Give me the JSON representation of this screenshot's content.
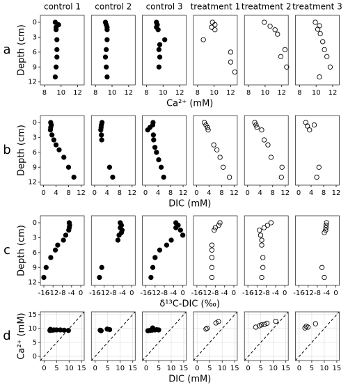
{
  "chart_data": [
    {
      "type": "scatter",
      "title": "control 1",
      "panel_label": "a",
      "ylabel": "Depth (cm)",
      "xlabel": "Ca²⁺ (mM)",
      "marker_fill": "#000000",
      "x": [
        9.3,
        9.7,
        9.4,
        9.4,
        9.5,
        9.5,
        9.5,
        9.4,
        9.3
      ],
      "y": [
        0,
        0.5,
        1,
        1.5,
        3.5,
        5.5,
        7,
        9,
        11
      ],
      "xlim": [
        7.5,
        12.8
      ],
      "ylim": [
        12.6,
        -1.4
      ],
      "xticks": [
        8,
        10,
        12
      ],
      "yticks": [
        0,
        3,
        6,
        9,
        12
      ]
    },
    {
      "type": "scatter",
      "title": "control 2",
      "marker_fill": "#000000",
      "x": [
        9.2,
        9.3,
        9.4,
        9.4,
        9.4,
        9.3,
        9.2,
        9.3,
        9.4
      ],
      "y": [
        0,
        0.5,
        1,
        1.5,
        3.5,
        5.5,
        7,
        9,
        11
      ],
      "xlim": [
        7.5,
        12.8
      ],
      "ylim": [
        12.6,
        -1.4
      ],
      "xticks": [
        8,
        10,
        12
      ]
    },
    {
      "type": "scatter",
      "title": "control 3",
      "marker_fill": "#000000",
      "x": [
        9.2,
        9.3,
        9.2,
        9.4,
        10.2,
        9.6,
        9.5,
        9.6,
        9.5
      ],
      "y": [
        0,
        0.5,
        1,
        1.5,
        3.5,
        4.5,
        5.5,
        7,
        9
      ],
      "xlim": [
        7.5,
        12.8
      ],
      "ylim": [
        12.6,
        -1.4
      ],
      "xticks": [
        8,
        10,
        12
      ]
    },
    {
      "type": "scatter",
      "title": "treatment 1",
      "marker_fill": "none",
      "x": [
        9.8,
        10.1,
        9.7,
        10.1,
        8.7,
        12,
        12,
        12.5
      ],
      "y": [
        0,
        0.5,
        1,
        1.5,
        3.5,
        6,
        8,
        10
      ],
      "xlim": [
        7.5,
        12.8
      ],
      "ylim": [
        12.6,
        -1.4
      ],
      "xticks": [
        8,
        10,
        12
      ]
    },
    {
      "type": "scatter",
      "title": "treatment 2",
      "marker_fill": "none",
      "x": [
        9.9,
        10.6,
        11.2,
        11.5,
        12.4,
        11.9,
        12.6
      ],
      "y": [
        0,
        0.8,
        1.5,
        2.4,
        5.5,
        6.9,
        9
      ],
      "xlim": [
        7.5,
        12.8
      ],
      "ylim": [
        12.6,
        -1.4
      ],
      "xticks": [
        8,
        10,
        12
      ]
    },
    {
      "type": "scatter",
      "title": "treatment 3",
      "marker_fill": "none",
      "x": [
        9.9,
        10.4,
        10.2,
        10.5,
        10.8,
        11.0,
        11.3,
        11.7,
        10.4
      ],
      "y": [
        0,
        0.7,
        1.4,
        2.3,
        3.9,
        5.5,
        6.9,
        9,
        11
      ],
      "xlim": [
        7.5,
        12.8
      ],
      "ylim": [
        12.6,
        -1.4
      ],
      "xticks": [
        8,
        10,
        12
      ]
    },
    {
      "type": "scatter",
      "panel_label": "b",
      "ylabel": "Depth (cm)",
      "xlabel": "DIC (mM)",
      "marker_fill": "#000000",
      "x": [
        2.3,
        2.5,
        2.3,
        2.2,
        2.7,
        3.3,
        4.0,
        5.0,
        6.5,
        8.0,
        9.7
      ],
      "y": [
        0,
        0.5,
        1,
        1.5,
        2.5,
        3.5,
        4.5,
        5.5,
        7,
        9,
        11
      ],
      "xlim": [
        -1,
        13
      ],
      "ylim": [
        12.6,
        -1.4
      ],
      "xticks": [
        0,
        4,
        8,
        12
      ],
      "yticks": [
        0,
        3,
        6,
        9,
        12
      ]
    },
    {
      "type": "scatter",
      "marker_fill": "#000000",
      "x": [
        2.4,
        2.2,
        2.1,
        2.0,
        2.2,
        2.3,
        4.8,
        5.8
      ],
      "y": [
        0,
        0.5,
        1,
        1.5,
        2.5,
        3.5,
        9,
        11
      ],
      "xlim": [
        -1,
        13
      ],
      "ylim": [
        12.6,
        -1.4
      ],
      "xticks": [
        0,
        4,
        8,
        12
      ]
    },
    {
      "type": "scatter",
      "marker_fill": "#000000",
      "x": [
        2.4,
        2.3,
        1.4,
        0.7,
        2.5,
        2.6,
        3.0,
        3.5,
        4.2,
        5.0,
        5.8
      ],
      "y": [
        0,
        0.5,
        1,
        1.5,
        2.5,
        3.5,
        5,
        6,
        7.5,
        9,
        11
      ],
      "xlim": [
        -1,
        13
      ],
      "ylim": [
        12.6,
        -1.4
      ],
      "xticks": [
        0,
        4,
        8,
        12
      ]
    },
    {
      "type": "scatter",
      "marker_fill": "none",
      "x": [
        2.5,
        3.0,
        3.5,
        3.7,
        5.5,
        6.5,
        7.5,
        8.5,
        10.5
      ],
      "y": [
        0,
        0.5,
        1,
        1.5,
        4.5,
        5.5,
        7,
        9,
        11
      ],
      "xlim": [
        -1,
        13
      ],
      "ylim": [
        12.6,
        -1.4
      ],
      "xticks": [
        0,
        4,
        8,
        12
      ]
    },
    {
      "type": "scatter",
      "marker_fill": "none",
      "x": [
        2.3,
        2.7,
        3.0,
        4.5,
        5.3,
        6.5,
        7.5,
        11.0,
        10.8
      ],
      "y": [
        0,
        0.5,
        1,
        1.5,
        3.5,
        4.5,
        7,
        9,
        11
      ],
      "xlim": [
        -1,
        13
      ],
      "ylim": [
        12.6,
        -1.4
      ],
      "xticks": [
        0,
        4,
        8,
        12
      ]
    },
    {
      "type": "scatter",
      "marker_fill": "none",
      "x": [
        2.3,
        2.8,
        3.5,
        5.0,
        6.5,
        5.8
      ],
      "y": [
        0,
        0.7,
        1.5,
        0.5,
        9,
        11
      ],
      "xlim": [
        -1,
        13
      ],
      "ylim": [
        12.6,
        -1.4
      ],
      "xticks": [
        0,
        4,
        8,
        12
      ]
    },
    {
      "type": "scatter",
      "panel_label": "c",
      "ylabel": "Depth (cm)",
      "xlabel": "δ¹³C-DIC (‰)",
      "marker_fill": "#000000",
      "x": [
        -5,
        -4.8,
        -5,
        -5.2,
        -6.5,
        -7.5,
        -10,
        -11,
        -13,
        -15,
        -16
      ],
      "y": [
        0,
        0.5,
        1,
        1.5,
        2.5,
        3.5,
        4.5,
        5.5,
        7,
        9,
        11
      ],
      "xlim": [
        -17.5,
        1.5
      ],
      "ylim": [
        12.6,
        -1.4
      ],
      "xticks": [
        -16,
        -12,
        -8,
        -4,
        0
      ],
      "yticks": [
        0,
        3,
        6,
        9,
        12
      ]
    },
    {
      "type": "scatter",
      "marker_fill": "#000000",
      "x": [
        -5,
        -4.5,
        -5,
        -4.2,
        -4.5,
        -5.5,
        -6,
        -13,
        -14
      ],
      "y": [
        0,
        0.5,
        1,
        1.5,
        2,
        2.5,
        3.5,
        9,
        11
      ],
      "xlim": [
        -17.5,
        1.5
      ],
      "ylim": [
        12.6,
        -1.4
      ],
      "xticks": [
        -16,
        -12,
        -8,
        -4,
        0
      ]
    },
    {
      "type": "scatter",
      "marker_fill": "#000000",
      "x": [
        -3,
        -2,
        -3,
        -1,
        0,
        -5,
        -7,
        -10,
        -12,
        -13,
        -13.8
      ],
      "y": [
        0,
        0.5,
        1,
        1.5,
        2.5,
        3.5,
        4.5,
        5.5,
        7,
        9,
        11
      ],
      "xlim": [
        -17.5,
        1.5
      ],
      "ylim": [
        12.6,
        -1.4
      ],
      "xticks": [
        -16,
        -12,
        -8,
        -4,
        0
      ]
    },
    {
      "type": "scatter",
      "marker_fill": "none",
      "x": [
        -6,
        -6.5,
        -8,
        -8.5,
        -9.5,
        -9.5,
        -9.5,
        -9.5,
        -9.5
      ],
      "y": [
        0,
        0.5,
        1,
        1.5,
        4.5,
        5.5,
        7,
        9,
        11
      ],
      "xlim": [
        -17.5,
        1.5
      ],
      "ylim": [
        12.6,
        -1.4
      ],
      "xticks": [
        -16,
        -12,
        -8,
        -4,
        0
      ]
    },
    {
      "type": "scatter",
      "marker_fill": "none",
      "x": [
        -6,
        -7.5,
        -9,
        -11,
        -10.5,
        -10,
        -10,
        -9.5,
        -9.5,
        -10
      ],
      "y": [
        0,
        0.5,
        1,
        1.5,
        2.5,
        3.5,
        4.5,
        7,
        9,
        11
      ],
      "xlim": [
        -17.5,
        1.5
      ],
      "ylim": [
        12.6,
        -1.4
      ],
      "xticks": [
        -16,
        -12,
        -8,
        -4,
        0
      ]
    },
    {
      "type": "scatter",
      "marker_fill": "none",
      "x": [
        -4,
        -4.2,
        -4.3,
        -4.4,
        -5,
        -6,
        -5
      ],
      "y": [
        0,
        0.5,
        1,
        1.5,
        2,
        9,
        11
      ],
      "xlim": [
        -17.5,
        1.5
      ],
      "ylim": [
        12.6,
        -1.4
      ],
      "xticks": [
        -16,
        -12,
        -8,
        -4,
        0
      ]
    },
    {
      "type": "scatter",
      "panel_label": "d",
      "ylabel": "Ca²⁺ (mM)",
      "xlabel": "DIC (mM)",
      "marker_fill": "#000000",
      "grid": true,
      "diagonal": true,
      "x": [
        2.3,
        2.5,
        3.3,
        4.0,
        5.0,
        6.5,
        8.0,
        9.7
      ],
      "y": [
        9.3,
        9.7,
        9.4,
        9.5,
        9.5,
        9.5,
        9.4,
        9.3
      ],
      "xlim": [
        -1.5,
        16
      ],
      "ylim": [
        -1.5,
        16
      ],
      "xticks": [
        0,
        5,
        10,
        15
      ],
      "yticks": [
        0,
        5,
        10,
        15
      ]
    },
    {
      "type": "scatter",
      "marker_fill": "#000000",
      "grid": true,
      "diagonal": true,
      "x": [
        2.0,
        2.2,
        2.4,
        4.8,
        5.8
      ],
      "y": [
        9.4,
        9.3,
        9.2,
        9.8,
        9.6
      ],
      "xlim": [
        -1.5,
        16
      ],
      "ylim": [
        -1.5,
        16
      ],
      "xticks": [
        0,
        5,
        10,
        15
      ]
    },
    {
      "type": "scatter",
      "marker_fill": "#000000",
      "grid": true,
      "diagonal": true,
      "x": [
        0.7,
        1.4,
        2.3,
        2.6,
        3.0,
        3.5,
        4.2,
        5.0
      ],
      "y": [
        9.2,
        9.3,
        9.4,
        10.2,
        9.6,
        9.5,
        9.6,
        9.5
      ],
      "xlim": [
        -1.5,
        16
      ],
      "ylim": [
        -1.5,
        16
      ],
      "xticks": [
        0,
        5,
        10,
        15
      ]
    },
    {
      "type": "scatter",
      "marker_fill": "none",
      "grid": true,
      "diagonal": true,
      "x": [
        3.5,
        4.0,
        7.5,
        8.5
      ],
      "y": [
        9.8,
        10.1,
        12,
        12.5
      ],
      "xlim": [
        -1.5,
        16
      ],
      "ylim": [
        -1.5,
        16
      ],
      "xticks": [
        0,
        5,
        10,
        15
      ]
    },
    {
      "type": "scatter",
      "marker_fill": "none",
      "grid": true,
      "diagonal": true,
      "x": [
        3.0,
        4.5,
        5.3,
        6.5,
        7.5,
        11.0
      ],
      "y": [
        10.5,
        11.0,
        11.3,
        11.5,
        11.9,
        12.6
      ],
      "xlim": [
        -1.5,
        16
      ],
      "ylim": [
        -1.5,
        16
      ],
      "xticks": [
        0,
        5,
        10,
        15
      ]
    },
    {
      "type": "scatter",
      "marker_fill": "none",
      "grid": true,
      "diagonal": true,
      "x": [
        2.3,
        2.8,
        3.5,
        6.5
      ],
      "y": [
        10.2,
        10.8,
        10.5,
        11.7
      ],
      "xlim": [
        -1.5,
        16
      ],
      "ylim": [
        -1.5,
        16
      ],
      "xticks": [
        0,
        5,
        10,
        15
      ]
    }
  ]
}
